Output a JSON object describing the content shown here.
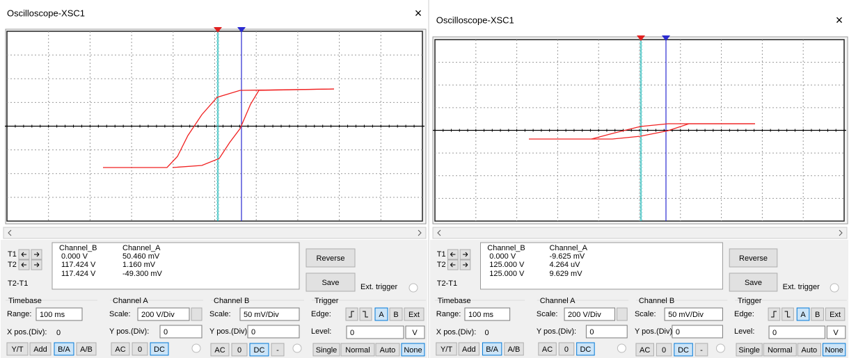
{
  "windows": [
    {
      "title": "Oscilloscope-XSC1",
      "close": "×",
      "readout": {
        "labels": [
          "T1",
          "T2",
          "T2-T1"
        ],
        "columns": [
          "Channel_B",
          "Channel_A"
        ],
        "rows": [
          [
            "0.000 V",
            "50.460 mV"
          ],
          [
            "117.424 V",
            "1.160 mV"
          ],
          [
            "117.424 V",
            "-49.300 mV"
          ]
        ]
      },
      "buttons": {
        "reverse": "Reverse",
        "save": "Save"
      },
      "ext_trigger": "Ext. trigger",
      "timebase": {
        "title": "Timebase",
        "range_label": "Range:",
        "range": "100 ms",
        "xpos_label": "X pos.(Div):",
        "xpos": "0",
        "modes": [
          "Y/T",
          "Add",
          "B/A",
          "A/B"
        ]
      },
      "channel_a": {
        "title": "Channel A",
        "scale_label": "Scale:",
        "scale": "200 V/Div",
        "ypos_label": "Y pos.(Div):",
        "ypos": "0",
        "coupling": [
          "AC",
          "0",
          "DC"
        ]
      },
      "channel_b": {
        "title": "Channel B",
        "scale_label": "Scale:",
        "scale": "50 mV/Div",
        "ypos_label": "Y pos.(Div):",
        "ypos": "0",
        "coupling": [
          "AC",
          "0",
          "DC",
          "-"
        ]
      },
      "trigger": {
        "title": "Trigger",
        "edge_label": "Edge:",
        "sources": [
          "A",
          "B",
          "Ext"
        ],
        "level_label": "Level:",
        "level": "0",
        "level_unit": "V",
        "modes": [
          "Single",
          "Normal",
          "Auto",
          "None"
        ]
      }
    },
    {
      "title": "Oscilloscope-XSC1",
      "close": "×",
      "readout": {
        "labels": [
          "T1",
          "T2",
          "T2-T1"
        ],
        "columns": [
          "Channel_B",
          "Channel_A"
        ],
        "rows": [
          [
            "0.000 V",
            "-9.625 mV"
          ],
          [
            "125.000 V",
            "4.264 uV"
          ],
          [
            "125.000 V",
            "9.629 mV"
          ]
        ]
      },
      "buttons": {
        "reverse": "Reverse",
        "save": "Save"
      },
      "ext_trigger": "Ext. trigger",
      "timebase": {
        "title": "Timebase",
        "range_label": "Range:",
        "range": "100 ms",
        "xpos_label": "X pos.(Div):",
        "xpos": "0",
        "modes": [
          "Y/T",
          "Add",
          "B/A",
          "A/B"
        ]
      },
      "channel_a": {
        "title": "Channel A",
        "scale_label": "Scale:",
        "scale": "200 V/Div",
        "ypos_label": "Y pos.(Div):",
        "ypos": "0",
        "coupling": [
          "AC",
          "0",
          "DC"
        ]
      },
      "channel_b": {
        "title": "Channel B",
        "scale_label": "Scale:",
        "scale": "50 mV/Div",
        "ypos_label": "Y pos.(Div):",
        "ypos": "0",
        "coupling": [
          "AC",
          "0",
          "DC",
          "-"
        ]
      },
      "trigger": {
        "title": "Trigger",
        "edge_label": "Edge:",
        "sources": [
          "A",
          "B",
          "Ext"
        ],
        "level_label": "Level:",
        "level": "0",
        "level_unit": "V",
        "modes": [
          "Single",
          "Normal",
          "Auto",
          "None"
        ]
      }
    }
  ]
}
